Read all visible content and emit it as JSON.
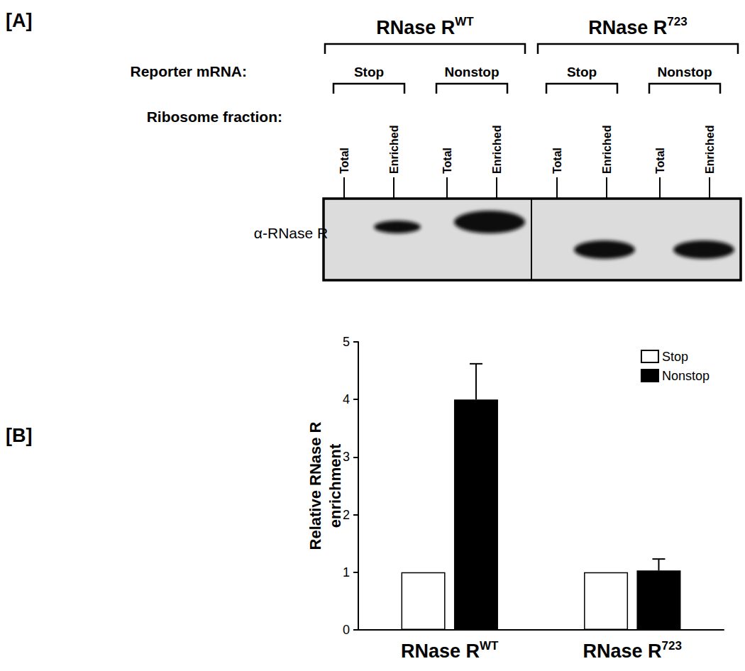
{
  "blot": {
    "panel_label": "[A]",
    "reporter_label": "Reporter mRNA:",
    "fraction_label": "Ribosome fraction:",
    "antibody": "α-RNase R",
    "groups": [
      {
        "name": {
          "text": "RNase R",
          "sup": "WT"
        },
        "reporters": [
          {
            "name": "Stop",
            "lanes": [
              {
                "fraction": "Total",
                "band": false
              },
              {
                "fraction": "Enriched",
                "band": true
              }
            ]
          },
          {
            "name": "Nonstop",
            "lanes": [
              {
                "fraction": "Total",
                "band": false
              },
              {
                "fraction": "Enriched",
                "band": true
              }
            ]
          }
        ]
      },
      {
        "name": {
          "text": "RNase R",
          "sup": "723"
        },
        "reporters": [
          {
            "name": "Stop",
            "lanes": [
              {
                "fraction": "Total",
                "band": false
              },
              {
                "fraction": "Enriched",
                "band": true
              }
            ]
          },
          {
            "name": "Nonstop",
            "lanes": [
              {
                "fraction": "Total",
                "band": false
              },
              {
                "fraction": "Enriched",
                "band": true
              }
            ]
          }
        ]
      }
    ]
  },
  "chart_data": {
    "panel_label": "[B]",
    "type": "bar",
    "categories": [
      {
        "text": "RNase R",
        "sup": "WT"
      },
      {
        "text": "RNase R",
        "sup": "723"
      }
    ],
    "ylabel": "Relative RNase R\nenrichment",
    "ylim": [
      0,
      5
    ],
    "yticks": [
      0,
      1,
      2,
      3,
      4,
      5
    ],
    "grid": false,
    "legend": "upper right",
    "series": [
      {
        "name": "Stop",
        "color": "#ffffff",
        "values": [
          1,
          1
        ],
        "errors": [
          0,
          0
        ]
      },
      {
        "name": "Nonstop",
        "color": "#000000",
        "values": [
          4.0,
          1.03
        ],
        "errors": [
          0.62,
          0.2
        ]
      }
    ]
  }
}
